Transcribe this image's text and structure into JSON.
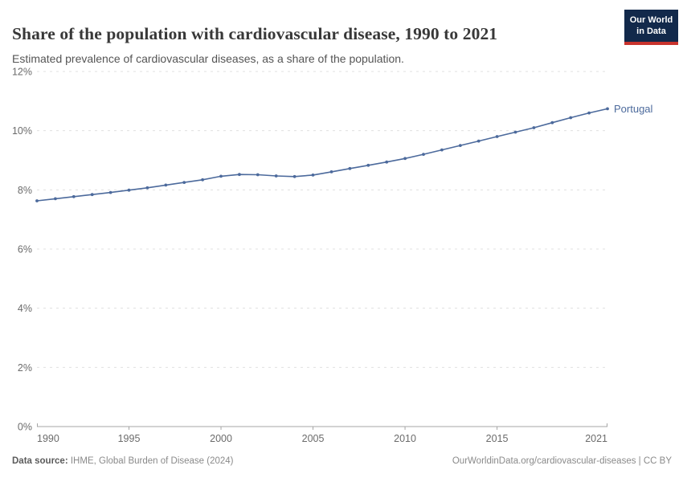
{
  "header": {
    "title": "Share of the population with cardiovascular disease, 1990 to 2021",
    "subtitle": "Estimated prevalence of cardiovascular diseases, as a share of the population.",
    "logo": {
      "line1": "Our World",
      "line2": "in Data",
      "bg_color": "#12294b",
      "accent_color": "#c8332d"
    }
  },
  "chart_data": {
    "type": "line",
    "title": "Share of the population with cardiovascular disease, 1990 to 2021",
    "subtitle": "Estimated prevalence of cardiovascular diseases, as a share of the population.",
    "xlabel": "",
    "ylabel": "",
    "xlim": [
      1990,
      2021
    ],
    "ylim": [
      0,
      12
    ],
    "xticks": [
      1990,
      1995,
      2000,
      2005,
      2010,
      2015,
      2021
    ],
    "yticks_percent": [
      0,
      2,
      4,
      6,
      8,
      10,
      12
    ],
    "ytick_suffix": "%",
    "grid": "horizontal-dashed",
    "legend_position": "end-of-line-label",
    "series": [
      {
        "name": "Portugal",
        "color": "#4c6a9c",
        "x": [
          1990,
          1991,
          1992,
          1993,
          1994,
          1995,
          1996,
          1997,
          1998,
          1999,
          2000,
          2001,
          2002,
          2003,
          2004,
          2005,
          2006,
          2007,
          2008,
          2009,
          2010,
          2011,
          2012,
          2013,
          2014,
          2015,
          2016,
          2017,
          2018,
          2019,
          2020,
          2021
        ],
        "values": [
          7.63,
          7.7,
          7.77,
          7.84,
          7.91,
          7.99,
          8.07,
          8.16,
          8.25,
          8.34,
          8.46,
          8.52,
          8.51,
          8.47,
          8.45,
          8.5,
          8.61,
          8.72,
          8.83,
          8.94,
          9.06,
          9.2,
          9.35,
          9.5,
          9.65,
          9.8,
          9.95,
          10.1,
          10.27,
          10.44,
          10.6,
          10.74
        ]
      }
    ]
  },
  "footer": {
    "datasource_label": "Data source:",
    "datasource_value": " IHME, Global Burden of Disease (2024)",
    "license_link": "OurWorldinData.org/cardiovascular-diseases | CC BY"
  },
  "colors": {
    "line": "#4c6a9c",
    "axis": "#a5a5a5",
    "gridline": "#e0e0e0",
    "tick_text": "#6b6b6b",
    "title_text": "#383838",
    "subtitle_text": "#555555"
  }
}
